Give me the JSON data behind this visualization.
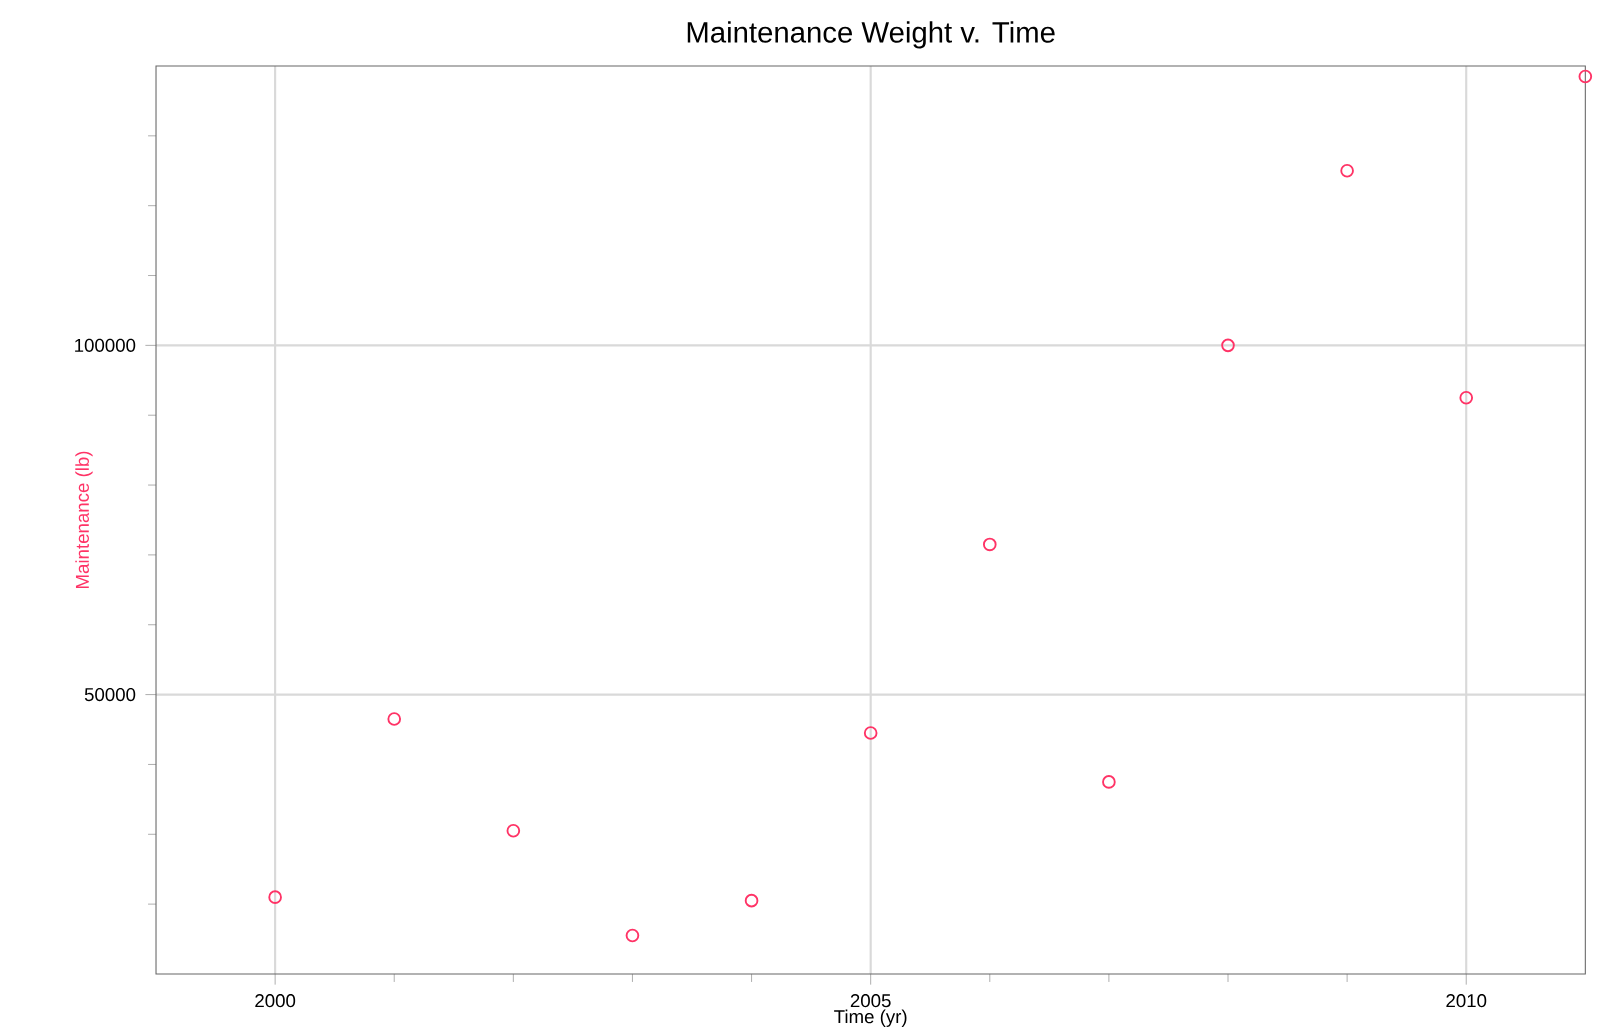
{
  "chart_data": {
    "type": "scatter",
    "title": "Maintenance Weight v. Time",
    "xlabel": "Time (yr)",
    "ylabel": "Maintenance (lb)",
    "x": [
      2000,
      2001,
      2002,
      2003,
      2004,
      2005,
      2006,
      2007,
      2008,
      2009,
      2010,
      2011
    ],
    "series": [
      {
        "color": "#ff3366",
        "values": [
          21000,
          46500,
          30500,
          15500,
          20500,
          44500,
          71500,
          37500,
          100000,
          125000,
          92500,
          138500
        ]
      }
    ],
    "xlim": [
      1999,
      2011
    ],
    "xticks": [
      2000,
      {
        "value": 2001,
        "label": null
      },
      {
        "value": 2002,
        "label": null
      },
      {
        "value": 2003,
        "label": null
      },
      {
        "value": 2004,
        "label": null
      },
      2005,
      {
        "value": 2006,
        "label": null
      },
      {
        "value": 2007,
        "label": null
      },
      {
        "value": 2008,
        "label": null
      },
      {
        "value": 2009,
        "label": null
      },
      2010
    ],
    "ylim": [
      10000,
      140000
    ],
    "yticks": [
      {
        "value": 20000,
        "label": null
      },
      {
        "value": 30000,
        "label": null
      },
      {
        "value": 40000,
        "label": null
      },
      50000,
      {
        "value": 60000,
        "label": null
      },
      {
        "value": 70000,
        "label": null
      },
      {
        "value": 80000,
        "label": null
      },
      {
        "value": 90000,
        "label": null
      },
      100000,
      {
        "value": 110000,
        "label": null
      },
      {
        "value": 120000,
        "label": null
      },
      {
        "value": 130000,
        "label": null
      }
    ],
    "grid": true,
    "marker": "circle"
  }
}
